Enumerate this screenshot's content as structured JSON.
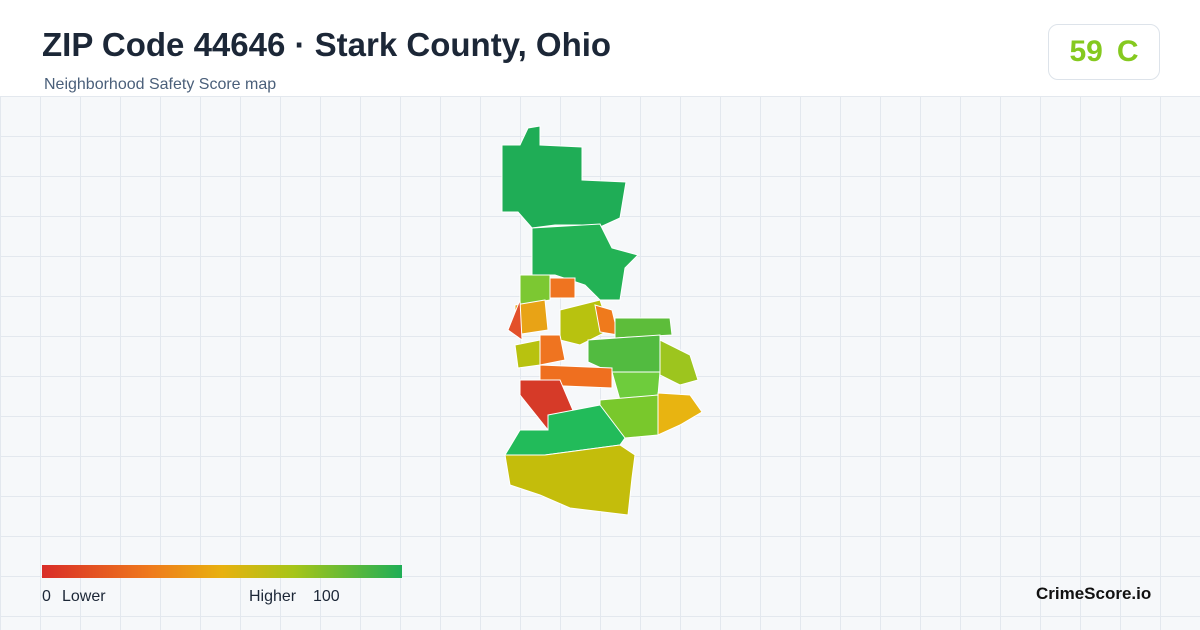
{
  "header": {
    "title": "ZIP Code 44646 · Stark County, Ohio",
    "subtitle": "Neighborhood Safety Score map"
  },
  "score": {
    "value": 59,
    "grade": "C"
  },
  "legend": {
    "min": 0,
    "min_label": "Lower",
    "max_label": "Higher",
    "max": 100
  },
  "brand": "CrimeScore.io"
}
